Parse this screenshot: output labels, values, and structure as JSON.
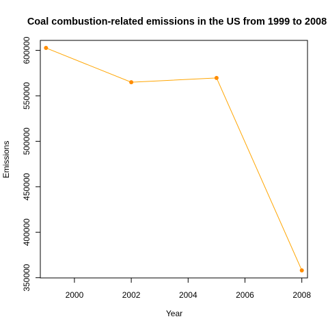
{
  "chart_data": {
    "type": "line",
    "title": "Coal combustion-related emissions in the US from 1999 to 2008",
    "xlabel": "Year",
    "ylabel": "Emissions",
    "x": [
      1999,
      2002,
      2005,
      2008
    ],
    "series": [
      {
        "values": [
          602624,
          564936,
          569654,
          358084
        ]
      }
    ],
    "xlim": [
      1998.8,
      2008.2
    ],
    "ylim": [
      349762,
      610946
    ],
    "x_ticks": [
      "2000",
      "2002",
      "2004",
      "2006",
      "2008"
    ],
    "y_ticks": [
      "350000",
      "400000",
      "450000",
      "500000",
      "550000",
      "600000"
    ],
    "grid": false,
    "line_color": "#FFA500",
    "point_color": "#FF8C00",
    "point_style": "filled-circle"
  }
}
